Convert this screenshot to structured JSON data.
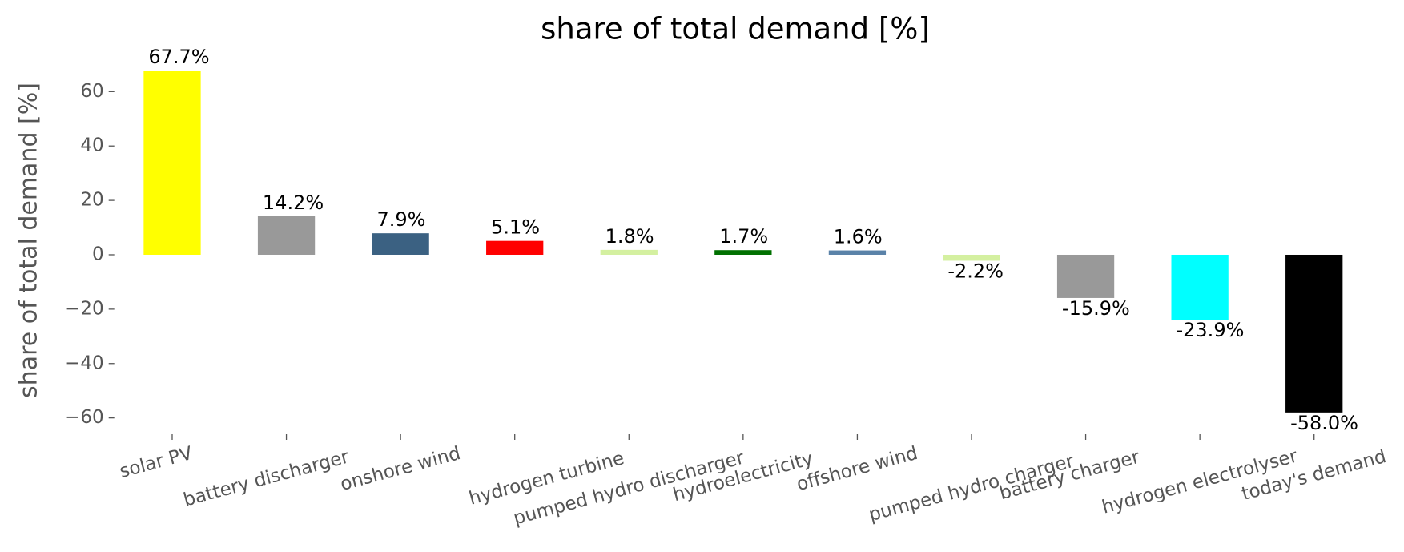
{
  "chart_data": {
    "type": "bar",
    "title": "share of total demand [%]",
    "y_label": "share of total demand [%]",
    "categories": [
      "solar PV",
      "battery discharger",
      "onshore wind",
      "hydrogen turbine",
      "pumped hydro discharger",
      "hydroelectricity",
      "offshore wind",
      "pumped hydro charger",
      "battery charger",
      "hydrogen electrolyser",
      "today's demand"
    ],
    "values": [
      67.7,
      14.2,
      7.9,
      5.1,
      1.8,
      1.7,
      1.6,
      -2.2,
      -15.9,
      -23.9,
      -58.0
    ],
    "value_labels": [
      "67.7%",
      "14.2%",
      "7.9%",
      "5.1%",
      "1.8%",
      "1.7%",
      "1.6%",
      "-2.2%",
      "-15.9%",
      "-23.9%",
      "-58.0%"
    ],
    "colors": [
      "#ffff00",
      "#999999",
      "#3b6182",
      "#ff0000",
      "#d4f0a0",
      "#007000",
      "#5a82a8",
      "#d4f0a0",
      "#999999",
      "#00ffff",
      "#000000"
    ],
    "ylim": [
      -66,
      71
    ],
    "yticks": [
      {
        "value": -60,
        "label": "−60"
      },
      {
        "value": -40,
        "label": "−40"
      },
      {
        "value": -20,
        "label": "−20"
      },
      0,
      20,
      40,
      60
    ],
    "grid": false
  }
}
